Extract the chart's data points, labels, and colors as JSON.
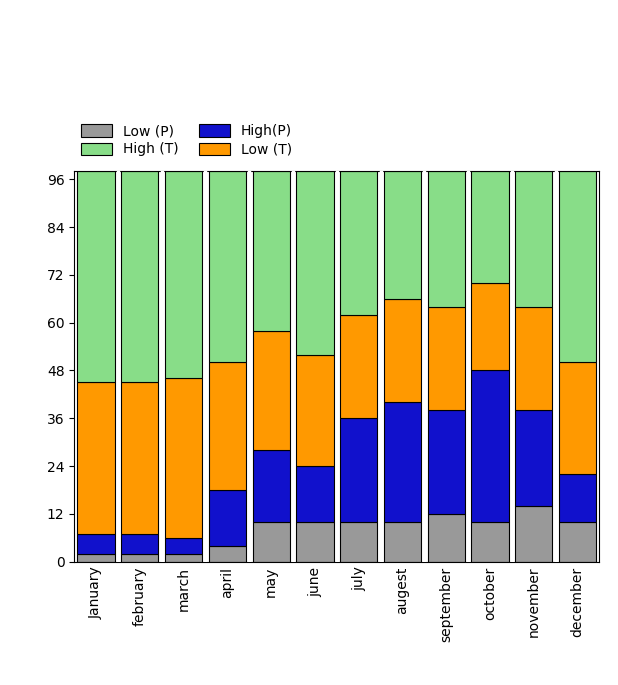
{
  "months": [
    "January",
    "february",
    "march",
    "april",
    "may",
    "june",
    "july",
    "augest",
    "september",
    "october",
    "november",
    "december"
  ],
  "low_p": [
    2,
    2,
    2,
    4,
    10,
    10,
    10,
    10,
    12,
    10,
    14,
    10
  ],
  "high_p": [
    5,
    5,
    4,
    14,
    18,
    14,
    26,
    30,
    26,
    38,
    24,
    12
  ],
  "low_t": [
    38,
    38,
    40,
    32,
    30,
    28,
    26,
    26,
    26,
    22,
    26,
    28
  ],
  "high_t": [
    53,
    53,
    52,
    48,
    40,
    46,
    36,
    32,
    34,
    28,
    34,
    48
  ],
  "colors": {
    "low_p": "#999999",
    "high_p": "#1111cc",
    "low_t": "#ff9900",
    "high_t": "#88dd88"
  },
  "ylim": [
    0,
    98
  ],
  "yticks": [
    0,
    12,
    24,
    36,
    48,
    60,
    72,
    84,
    96
  ],
  "background_color": "#ffffff",
  "bar_edge_color": "#000000",
  "bar_width": 0.85
}
